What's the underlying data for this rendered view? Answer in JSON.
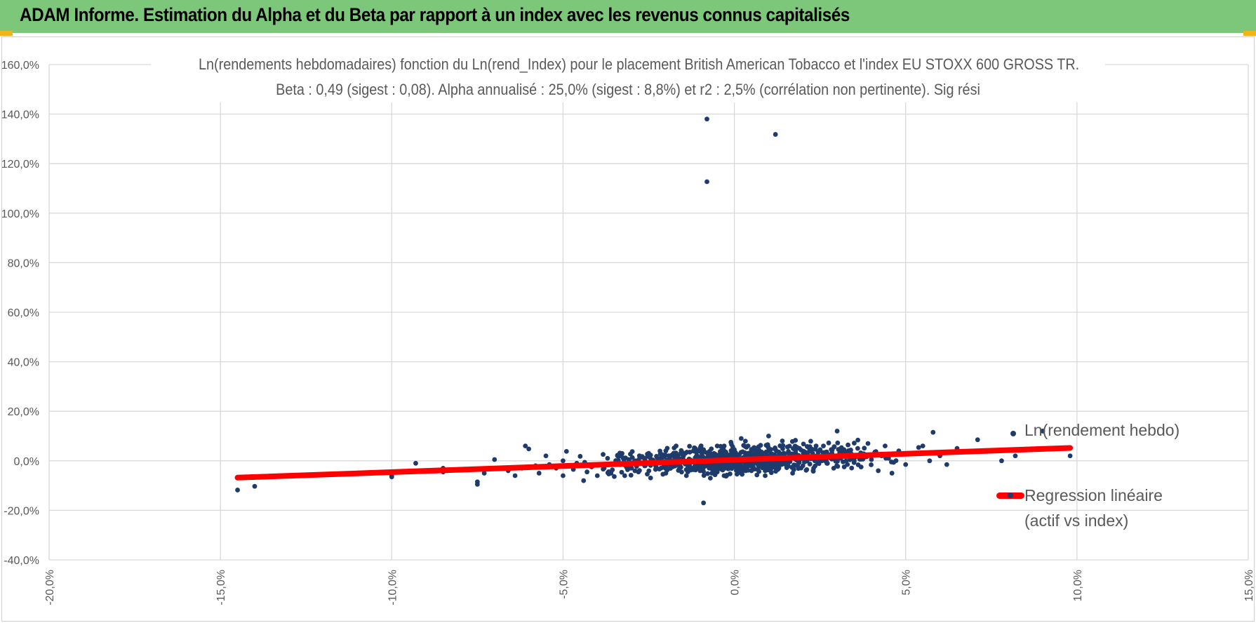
{
  "header": {
    "title": "ADAM Informe. Estimation du Alpha et du Beta par rapport à un index avec les revenus connus capitalisés",
    "background": "#7dc77a",
    "accent": "#f2b21a"
  },
  "chart_data": {
    "type": "scatter",
    "title_line1": "Ln(rendements hebdomadaires) fonction du Ln(rend_Index) pour le placement British American Tobacco  et l'index EU STOXX 600 GROSS TR.",
    "title_line2": "Beta : 0,49 (sigest : 0,08).  Alpha annualisé : 25,0% (sigest : 8,8%) et r2 : 2,5% (corrélation non pertinente). Sig rési",
    "xlim": [
      -0.2,
      0.15
    ],
    "ylim": [
      -0.4,
      1.6
    ],
    "x_ticks": [
      -0.2,
      -0.15,
      -0.1,
      -0.05,
      0.0,
      0.05,
      0.1,
      0.15
    ],
    "y_ticks": [
      -0.4,
      -0.2,
      0.0,
      0.2,
      0.4,
      0.6,
      0.8,
      1.0,
      1.2,
      1.4,
      1.6
    ],
    "x_tick_labels": [
      "-20,0%",
      "-15,0%",
      "-10,0%",
      "-5,0%",
      "0,0%",
      "5,0%",
      "10,0%",
      "15,0%"
    ],
    "y_tick_labels": [
      "-40,0%",
      "-20,0%",
      "0,0%",
      "20,0%",
      "40,0%",
      "60,0%",
      "80,0%",
      "100,0%",
      "120,0%",
      "140,0%",
      "160,0%"
    ],
    "grid": true,
    "legend_position": "right",
    "series": [
      {
        "name": "Ln(rendement hebdo)",
        "color": "#1f3b6b",
        "points": [
          [
            -0.145,
            -0.118
          ],
          [
            -0.14,
            -0.103
          ],
          [
            -0.115,
            -0.055
          ],
          [
            -0.1,
            -0.065
          ],
          [
            -0.1,
            -0.06
          ],
          [
            -0.093,
            -0.01
          ],
          [
            -0.085,
            -0.045
          ],
          [
            -0.085,
            -0.03
          ],
          [
            -0.075,
            -0.085
          ],
          [
            -0.075,
            -0.095
          ],
          [
            -0.073,
            -0.05
          ],
          [
            -0.07,
            0.005
          ],
          [
            -0.066,
            -0.04
          ],
          [
            -0.064,
            -0.06
          ],
          [
            -0.062,
            -0.03
          ],
          [
            -0.061,
            0.06
          ],
          [
            -0.06,
            0.048
          ],
          [
            -0.058,
            -0.02
          ],
          [
            -0.057,
            -0.05
          ],
          [
            -0.055,
            0.02
          ],
          [
            -0.054,
            -0.015
          ],
          [
            -0.052,
            -0.03
          ],
          [
            -0.05,
            -0.06
          ],
          [
            -0.05,
            0.0
          ],
          [
            -0.049,
            0.038
          ],
          [
            -0.047,
            -0.035
          ],
          [
            -0.046,
            -0.01
          ],
          [
            -0.045,
            0.018
          ],
          [
            -0.044,
            -0.08
          ],
          [
            -0.043,
            -0.045
          ],
          [
            -0.042,
            -0.02
          ],
          [
            -0.04,
            -0.06
          ],
          [
            -0.038,
            -0.03
          ],
          [
            -0.037,
            0.01
          ],
          [
            -0.036,
            -0.05
          ],
          [
            -0.034,
            -0.015
          ],
          [
            -0.033,
            0.02
          ],
          [
            -0.032,
            -0.06
          ],
          [
            -0.03,
            -0.03
          ],
          [
            -0.029,
            0.0
          ],
          [
            -0.028,
            -0.045
          ],
          [
            -0.027,
            0.015
          ],
          [
            -0.026,
            -0.02
          ],
          [
            -0.025,
            0.03
          ],
          [
            -0.024,
            -0.01
          ],
          [
            -0.023,
            -0.035
          ],
          [
            -0.022,
            0.005
          ],
          [
            -0.021,
            0.025
          ],
          [
            -0.02,
            -0.05
          ],
          [
            -0.02,
            0.04
          ],
          [
            -0.018,
            -0.015
          ],
          [
            -0.017,
            0.06
          ],
          [
            -0.016,
            -0.03
          ],
          [
            -0.015,
            0.01
          ],
          [
            -0.014,
            -0.06
          ],
          [
            -0.013,
            0.035
          ],
          [
            -0.012,
            -0.005
          ],
          [
            -0.011,
            0.02
          ],
          [
            -0.01,
            -0.04
          ],
          [
            -0.01,
            0.05
          ],
          [
            -0.009,
            -0.02
          ],
          [
            -0.008,
            0.0
          ],
          [
            -0.007,
            0.03
          ],
          [
            -0.007,
            -0.07
          ],
          [
            -0.006,
            -0.01
          ],
          [
            -0.006,
            0.015
          ],
          [
            -0.005,
            -0.045
          ],
          [
            -0.005,
            0.06
          ],
          [
            -0.004,
            0.005
          ],
          [
            -0.004,
            -0.025
          ],
          [
            -0.003,
            0.04
          ],
          [
            -0.003,
            -0.06
          ],
          [
            -0.002,
            0.02
          ],
          [
            -0.002,
            -0.01
          ],
          [
            -0.001,
            0.075
          ],
          [
            -0.001,
            -0.03
          ],
          [
            0.0,
            0.0
          ],
          [
            0.0,
            0.045
          ],
          [
            0.001,
            -0.02
          ],
          [
            0.001,
            0.025
          ],
          [
            0.002,
            0.09
          ],
          [
            0.002,
            -0.05
          ],
          [
            0.003,
            0.01
          ],
          [
            0.003,
            -0.005
          ],
          [
            0.004,
            0.06
          ],
          [
            0.004,
            0.03
          ],
          [
            0.005,
            -0.04
          ],
          [
            0.005,
            0.015
          ],
          [
            0.006,
            0.005
          ],
          [
            0.006,
            0.05
          ],
          [
            0.007,
            -0.02
          ],
          [
            0.008,
            0.035
          ],
          [
            0.008,
            0.0
          ],
          [
            0.009,
            -0.06
          ],
          [
            0.01,
            0.1
          ],
          [
            0.01,
            0.02
          ],
          [
            0.011,
            -0.01
          ],
          [
            0.012,
            0.045
          ],
          [
            0.013,
            -0.03
          ],
          [
            0.013,
            0.01
          ],
          [
            0.014,
            0.08
          ],
          [
            0.015,
            -0.015
          ],
          [
            0.016,
            0.03
          ],
          [
            0.017,
            -0.05
          ],
          [
            0.018,
            0.015
          ],
          [
            0.019,
            0.05
          ],
          [
            0.02,
            -0.02
          ],
          [
            0.021,
            0.005
          ],
          [
            0.022,
            0.04
          ],
          [
            0.023,
            -0.04
          ],
          [
            0.024,
            0.02
          ],
          [
            0.025,
            0.0
          ],
          [
            0.026,
            0.06
          ],
          [
            0.027,
            -0.01
          ],
          [
            0.028,
            0.025
          ],
          [
            0.029,
            -0.03
          ],
          [
            0.03,
            0.12
          ],
          [
            0.031,
            0.01
          ],
          [
            0.032,
            0.045
          ],
          [
            0.033,
            -0.015
          ],
          [
            0.034,
            0.03
          ],
          [
            0.035,
            0.0
          ],
          [
            0.036,
            0.05
          ],
          [
            0.037,
            -0.025
          ],
          [
            0.038,
            0.015
          ],
          [
            0.039,
            0.07
          ],
          [
            0.04,
            0.005
          ],
          [
            0.041,
            0.035
          ],
          [
            0.042,
            -0.04
          ],
          [
            0.043,
            0.02
          ],
          [
            0.044,
            0.06
          ],
          [
            0.045,
            0.01
          ],
          [
            0.046,
            -0.05
          ],
          [
            0.047,
            0.025
          ],
          [
            0.048,
            0.04
          ],
          [
            0.05,
            -0.015
          ],
          [
            0.052,
            0.03
          ],
          [
            0.055,
            0.06
          ],
          [
            0.057,
            0.0
          ],
          [
            0.058,
            0.115
          ],
          [
            0.06,
            0.02
          ],
          [
            0.062,
            -0.015
          ],
          [
            0.065,
            0.05
          ],
          [
            0.071,
            0.085
          ],
          [
            0.078,
            0.0
          ],
          [
            0.082,
            0.02
          ],
          [
            0.09,
            0.12
          ],
          [
            0.098,
            0.02
          ],
          [
            -0.008,
            1.38
          ],
          [
            -0.008,
            1.127
          ],
          [
            0.012,
            1.318
          ],
          [
            -0.009,
            -0.17
          ]
        ]
      },
      {
        "name": "Regression linéaire (actif vs index)",
        "color": "#ff0000",
        "line": [
          [
            -0.145,
            -0.068
          ],
          [
            0.098,
            0.052
          ]
        ]
      }
    ]
  },
  "legend": {
    "scatter_label": "Ln(rendement hebdo)",
    "line_label_1": "Regression linéaire",
    "line_label_2": "(actif vs index)"
  }
}
